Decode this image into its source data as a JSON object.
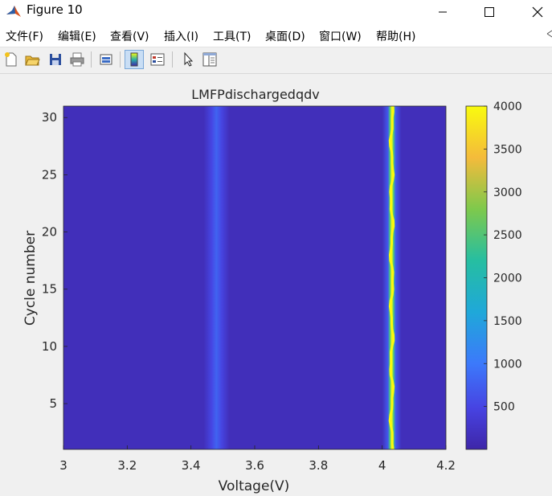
{
  "window": {
    "title": "Figure 10"
  },
  "menu": [
    "文件(F)",
    "编辑(E)",
    "查看(V)",
    "插入(I)",
    "工具(T)",
    "桌面(D)",
    "窗口(W)",
    "帮助(H)"
  ],
  "toolbar": [
    "new-figure-icon",
    "open-file-icon",
    "save-icon",
    "print-icon",
    "link-plot-icon",
    "colorbar-icon",
    "legend-icon",
    "edit-plot-arrow-icon",
    "property-inspector-icon"
  ],
  "chart_data": {
    "type": "heatmap",
    "title": "LMFPdischargedqdv",
    "xlabel": "Voltage(V)",
    "ylabel": "Cycle number",
    "xlim": [
      3,
      4.2
    ],
    "ylim": [
      1,
      31
    ],
    "x_ticks": [
      "3",
      "3.2",
      "3.4",
      "3.6",
      "3.8",
      "4",
      "4.2"
    ],
    "y_ticks": [
      "5",
      "10",
      "15",
      "20",
      "25",
      "30"
    ],
    "colorbar": {
      "clim": [
        0,
        4000
      ],
      "ticks": [
        "500",
        "1000",
        "1500",
        "2000",
        "2500",
        "3000",
        "3500",
        "4000"
      ],
      "colormap": "parula"
    },
    "features": [
      {
        "voltage": 3.48,
        "value": 800,
        "description": "broad weak peak"
      },
      {
        "voltage": 4.03,
        "value": 4000,
        "description": "sharp strong peak"
      }
    ],
    "background_value": 150
  }
}
